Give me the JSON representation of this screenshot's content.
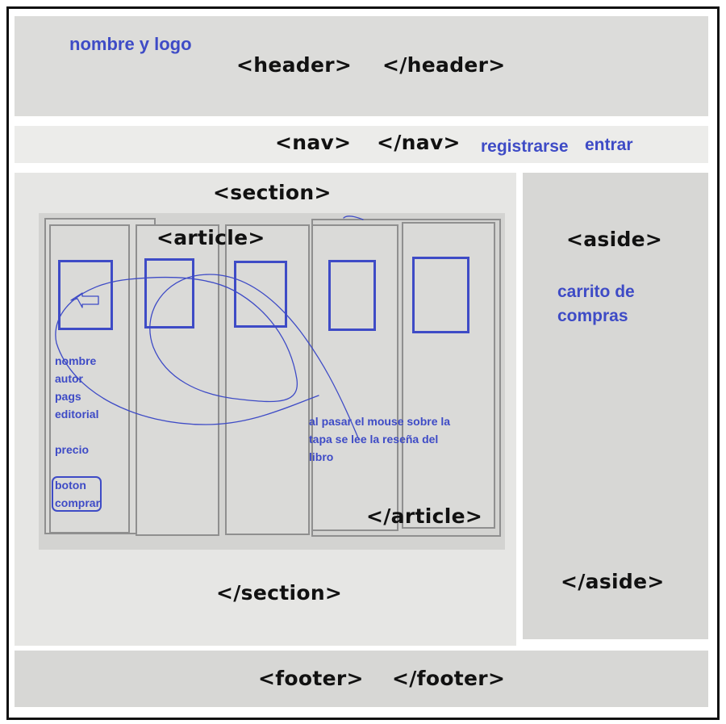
{
  "header": {
    "note": "nombre y logo",
    "open_tag": "<header>",
    "close_tag": "</header>"
  },
  "nav": {
    "open_tag": "<nav>",
    "close_tag": "</nav>",
    "register": "registrarse",
    "login": "entrar"
  },
  "section": {
    "open_tag": "<section>",
    "close_tag": "</section>"
  },
  "article": {
    "open_tag": "<article>",
    "close_tag": "</article>",
    "book_info": [
      "nombre",
      "autor",
      "pags",
      "editorial",
      "",
      "precio",
      "",
      "boton",
      "comprar"
    ],
    "hover_note": [
      "al pasar el mouse sobre la",
      "tapa se lee la reseña del",
      "libro"
    ]
  },
  "aside": {
    "open_tag": "<aside>",
    "close_tag": "</aside>",
    "note_line1": "carrito de",
    "note_line2": "compras"
  },
  "footer": {
    "open_tag": "<footer>",
    "close_tag": "</footer>"
  },
  "colors": {
    "annotation": "#3e4bc6",
    "tag_text": "#111111"
  }
}
